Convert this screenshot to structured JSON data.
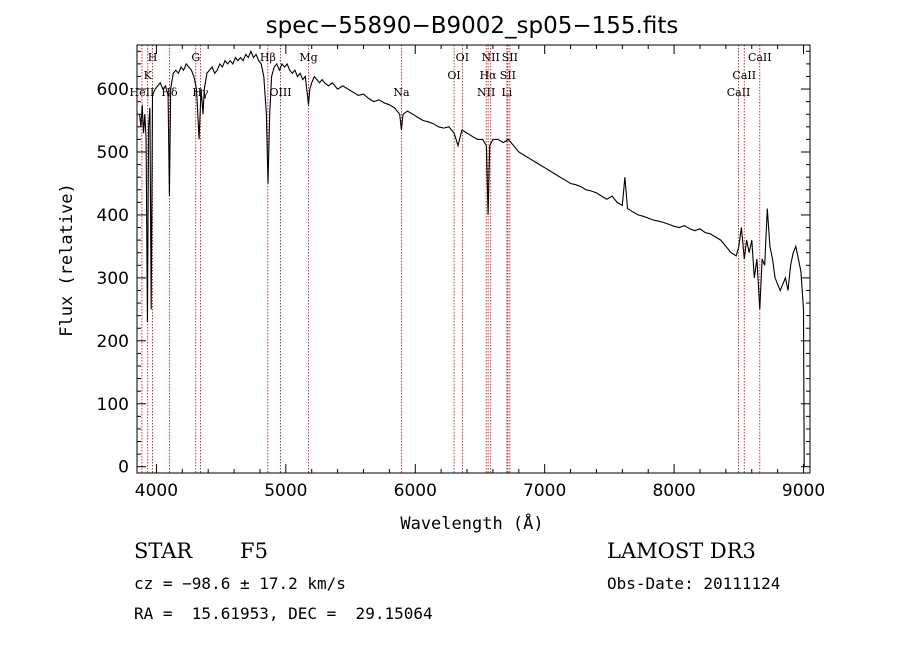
{
  "chart_data": {
    "type": "line",
    "title": "spec−55890−B9002_sp05−155.fits",
    "xlabel": "Wavelength (Å)",
    "ylabel": "Flux (relative)",
    "xlim": [
      3850,
      9050
    ],
    "ylim": [
      -10,
      670
    ],
    "x_ticks": [
      4000,
      5000,
      6000,
      7000,
      8000,
      9000
    ],
    "y_ticks": [
      0,
      100,
      200,
      300,
      400,
      500,
      600
    ],
    "series": [
      {
        "name": "spectrum",
        "points": [
          [
            3870,
            560
          ],
          [
            3880,
            540
          ],
          [
            3890,
            575
          ],
          [
            3900,
            530
          ],
          [
            3910,
            560
          ],
          [
            3920,
            520
          ],
          [
            3930,
            230
          ],
          [
            3940,
            540
          ],
          [
            3950,
            570
          ],
          [
            3960,
            250
          ],
          [
            3970,
            590
          ],
          [
            3990,
            600
          ],
          [
            4010,
            605
          ],
          [
            4030,
            610
          ],
          [
            4050,
            600
          ],
          [
            4070,
            605
          ],
          [
            4090,
            590
          ],
          [
            4100,
            430
          ],
          [
            4110,
            600
          ],
          [
            4130,
            625
          ],
          [
            4150,
            630
          ],
          [
            4170,
            625
          ],
          [
            4190,
            635
          ],
          [
            4210,
            630
          ],
          [
            4230,
            640
          ],
          [
            4250,
            635
          ],
          [
            4270,
            630
          ],
          [
            4290,
            620
          ],
          [
            4310,
            600
          ],
          [
            4330,
            520
          ],
          [
            4345,
            600
          ],
          [
            4360,
            560
          ],
          [
            4370,
            600
          ],
          [
            4390,
            625
          ],
          [
            4410,
            630
          ],
          [
            4430,
            635
          ],
          [
            4450,
            625
          ],
          [
            4470,
            630
          ],
          [
            4490,
            640
          ],
          [
            4510,
            635
          ],
          [
            4530,
            645
          ],
          [
            4550,
            640
          ],
          [
            4570,
            645
          ],
          [
            4590,
            640
          ],
          [
            4610,
            650
          ],
          [
            4630,
            645
          ],
          [
            4650,
            650
          ],
          [
            4670,
            645
          ],
          [
            4690,
            655
          ],
          [
            4710,
            650
          ],
          [
            4730,
            660
          ],
          [
            4750,
            650
          ],
          [
            4770,
            655
          ],
          [
            4790,
            645
          ],
          [
            4810,
            640
          ],
          [
            4830,
            620
          ],
          [
            4850,
            560
          ],
          [
            4862,
            450
          ],
          [
            4875,
            560
          ],
          [
            4890,
            620
          ],
          [
            4910,
            635
          ],
          [
            4930,
            640
          ],
          [
            4950,
            630
          ],
          [
            4970,
            640
          ],
          [
            4990,
            635
          ],
          [
            5010,
            640
          ],
          [
            5030,
            630
          ],
          [
            5050,
            625
          ],
          [
            5070,
            630
          ],
          [
            5090,
            620
          ],
          [
            5110,
            625
          ],
          [
            5130,
            615
          ],
          [
            5150,
            620
          ],
          [
            5167,
            590
          ],
          [
            5175,
            575
          ],
          [
            5185,
            600
          ],
          [
            5200,
            610
          ],
          [
            5220,
            620
          ],
          [
            5240,
            615
          ],
          [
            5260,
            610
          ],
          [
            5280,
            615
          ],
          [
            5300,
            610
          ],
          [
            5330,
            605
          ],
          [
            5360,
            610
          ],
          [
            5400,
            600
          ],
          [
            5440,
            605
          ],
          [
            5480,
            600
          ],
          [
            5520,
            595
          ],
          [
            5560,
            590
          ],
          [
            5600,
            592
          ],
          [
            5640,
            585
          ],
          [
            5680,
            580
          ],
          [
            5720,
            583
          ],
          [
            5760,
            578
          ],
          [
            5800,
            575
          ],
          [
            5840,
            570
          ],
          [
            5880,
            560
          ],
          [
            5893,
            535
          ],
          [
            5905,
            560
          ],
          [
            5940,
            565
          ],
          [
            5980,
            560
          ],
          [
            6020,
            555
          ],
          [
            6060,
            550
          ],
          [
            6100,
            548
          ],
          [
            6140,
            545
          ],
          [
            6180,
            540
          ],
          [
            6220,
            538
          ],
          [
            6260,
            540
          ],
          [
            6300,
            530
          ],
          [
            6330,
            510
          ],
          [
            6360,
            535
          ],
          [
            6400,
            530
          ],
          [
            6440,
            525
          ],
          [
            6480,
            520
          ],
          [
            6520,
            520
          ],
          [
            6550,
            510
          ],
          [
            6563,
            400
          ],
          [
            6575,
            510
          ],
          [
            6600,
            520
          ],
          [
            6640,
            520
          ],
          [
            6680,
            515
          ],
          [
            6720,
            520
          ],
          [
            6760,
            510
          ],
          [
            6800,
            500
          ],
          [
            6840,
            495
          ],
          [
            6880,
            490
          ],
          [
            6920,
            485
          ],
          [
            6960,
            480
          ],
          [
            7000,
            475
          ],
          [
            7040,
            470
          ],
          [
            7080,
            465
          ],
          [
            7120,
            460
          ],
          [
            7160,
            455
          ],
          [
            7200,
            450
          ],
          [
            7240,
            448
          ],
          [
            7280,
            445
          ],
          [
            7320,
            440
          ],
          [
            7360,
            438
          ],
          [
            7400,
            435
          ],
          [
            7440,
            430
          ],
          [
            7480,
            425
          ],
          [
            7520,
            430
          ],
          [
            7560,
            420
          ],
          [
            7600,
            415
          ],
          [
            7620,
            460
          ],
          [
            7640,
            410
          ],
          [
            7680,
            405
          ],
          [
            7720,
            400
          ],
          [
            7760,
            398
          ],
          [
            7800,
            395
          ],
          [
            7840,
            392
          ],
          [
            7880,
            390
          ],
          [
            7920,
            388
          ],
          [
            7960,
            385
          ],
          [
            8000,
            382
          ],
          [
            8040,
            380
          ],
          [
            8080,
            383
          ],
          [
            8120,
            378
          ],
          [
            8160,
            375
          ],
          [
            8200,
            378
          ],
          [
            8240,
            372
          ],
          [
            8280,
            370
          ],
          [
            8320,
            365
          ],
          [
            8360,
            360
          ],
          [
            8400,
            350
          ],
          [
            8440,
            340
          ],
          [
            8480,
            335
          ],
          [
            8500,
            350
          ],
          [
            8520,
            380
          ],
          [
            8542,
            330
          ],
          [
            8560,
            360
          ],
          [
            8580,
            340
          ],
          [
            8600,
            360
          ],
          [
            8620,
            300
          ],
          [
            8640,
            330
          ],
          [
            8662,
            250
          ],
          [
            8680,
            330
          ],
          [
            8700,
            320
          ],
          [
            8720,
            410
          ],
          [
            8740,
            350
          ],
          [
            8760,
            330
          ],
          [
            8780,
            300
          ],
          [
            8800,
            290
          ],
          [
            8820,
            280
          ],
          [
            8840,
            290
          ],
          [
            8860,
            300
          ],
          [
            8880,
            280
          ],
          [
            8900,
            320
          ],
          [
            8920,
            340
          ],
          [
            8940,
            350
          ],
          [
            8960,
            330
          ],
          [
            8980,
            310
          ],
          [
            9000,
            250
          ],
          [
            9005,
            0
          ]
        ]
      }
    ],
    "lines": [
      {
        "label": "H",
        "wave": 3970,
        "row": 0
      },
      {
        "label": "K",
        "wave": 3933,
        "row": 1
      },
      {
        "label": "HeII",
        "wave": 3888,
        "row": 2
      },
      {
        "label": "Hδ",
        "wave": 4101,
        "row": 2
      },
      {
        "label": "G",
        "wave": 4304,
        "row": 0
      },
      {
        "label": "Hγ",
        "wave": 4340,
        "row": 2
      },
      {
        "label": "Hβ",
        "wave": 4861,
        "row": 0
      },
      {
        "label": "OIII",
        "wave": 4959,
        "row": 2
      },
      {
        "label": "Mg",
        "wave": 5175,
        "row": 0
      },
      {
        "label": "Na",
        "wave": 5893,
        "row": 2
      },
      {
        "label": "OI",
        "wave": 6300,
        "row": 1
      },
      {
        "label": "OI",
        "wave": 6364,
        "row": 0
      },
      {
        "label": "NII",
        "wave": 6548,
        "row": 2
      },
      {
        "label": "Hα",
        "wave": 6563,
        "row": 1
      },
      {
        "label": "NII",
        "wave": 6583,
        "row": 0
      },
      {
        "label": "Li",
        "wave": 6708,
        "row": 2
      },
      {
        "label": "SII",
        "wave": 6716,
        "row": 1
      },
      {
        "label": "SII",
        "wave": 6731,
        "row": 0
      },
      {
        "label": "CaII",
        "wave": 8498,
        "row": 2
      },
      {
        "label": "CaII",
        "wave": 8542,
        "row": 1
      },
      {
        "label": "CaII",
        "wave": 8662,
        "row": 0
      }
    ]
  },
  "info": {
    "object_class": "STAR",
    "subclass": "F5",
    "survey": "LAMOST DR3",
    "redshift": "cz = −98.6 ± 17.2 km/s",
    "obs_date": "Obs-Date: 20111124",
    "coords": "RA =  15.61953, DEC =  29.15064"
  },
  "colors": {
    "spectrum": "#000000",
    "line_markers": "#cc0000"
  }
}
